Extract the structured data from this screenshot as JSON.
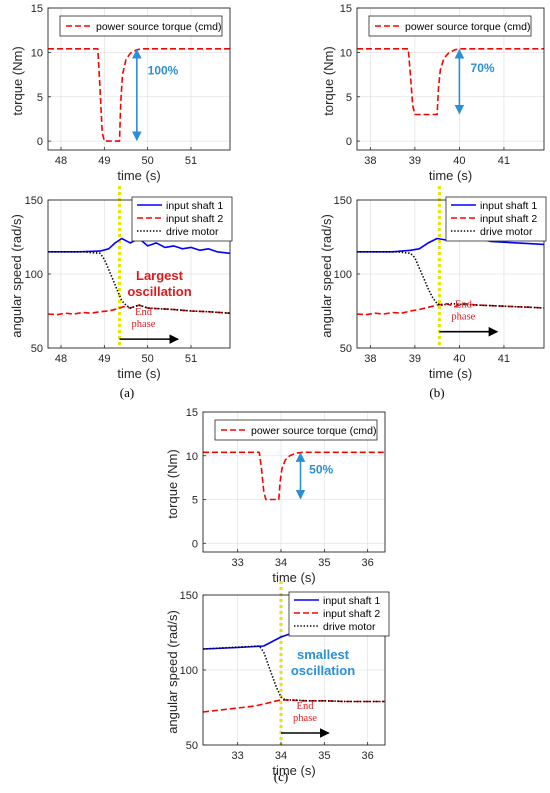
{
  "chart_data": [
    {
      "id": "a_torque",
      "type": "line",
      "xlabel": "time (s)",
      "ylabel": "torque (Nm)",
      "xlim": [
        47.7,
        51.9
      ],
      "ylim": [
        -1,
        15
      ],
      "xticks": [
        48,
        49,
        50,
        51
      ],
      "yticks": [
        0,
        5,
        10,
        15
      ],
      "grid": true,
      "legend": {
        "position": "top",
        "entries": [
          "power source torque (cmd)"
        ]
      },
      "series": [
        {
          "name": "power source torque (cmd)",
          "color": "#ff0000",
          "style": "dashed",
          "x": [
            47.7,
            48.85,
            48.9,
            48.95,
            49.0,
            49.35,
            49.38,
            49.42,
            49.5,
            49.6,
            49.75,
            49.9,
            51.9
          ],
          "y": [
            10.4,
            10.4,
            6.0,
            1.0,
            0.0,
            0.0,
            4.5,
            7.5,
            9.2,
            9.9,
            10.3,
            10.4,
            10.4
          ]
        }
      ],
      "annotations": [
        {
          "text": "100%",
          "color": "#2a8fd6",
          "arrow_x": 49.75,
          "arrow_y": [
            0,
            10.4
          ],
          "text_x": 50.0,
          "text_y": 7.5
        }
      ]
    },
    {
      "id": "a_speed",
      "type": "line",
      "xlabel": "time (s)",
      "ylabel": "angular speed (rad/s)",
      "xlim": [
        47.7,
        51.9
      ],
      "ylim": [
        50,
        150
      ],
      "xticks": [
        48,
        49,
        50,
        51
      ],
      "yticks": [
        50,
        100,
        150
      ],
      "grid": true,
      "legend": {
        "position": "top-right",
        "entries": [
          "input shaft 1",
          "input shaft 2",
          "drive motor"
        ]
      },
      "vline": {
        "x": 49.35,
        "color": "#e6e600"
      },
      "series": [
        {
          "name": "input shaft 1",
          "color": "#0000ff",
          "style": "solid",
          "x": [
            47.7,
            48.4,
            48.9,
            49.1,
            49.25,
            49.4,
            49.6,
            49.8,
            50.0,
            50.2,
            50.4,
            50.6,
            50.8,
            51.0,
            51.2,
            51.4,
            51.6,
            51.9
          ],
          "y": [
            115,
            115,
            115.5,
            117,
            121,
            124,
            121,
            124,
            119,
            121,
            118,
            119,
            117,
            118,
            116,
            117,
            115,
            114
          ]
        },
        {
          "name": "input shaft 2",
          "color": "#ff0000",
          "style": "dashed",
          "x": [
            47.7,
            47.9,
            48.1,
            48.3,
            48.5,
            48.7,
            48.9,
            49.1,
            49.3,
            49.45,
            49.6,
            49.8,
            50.0,
            50.3,
            50.6,
            51.0,
            51.4,
            51.9
          ],
          "y": [
            73,
            72.5,
            73.5,
            73,
            74,
            73.5,
            74.5,
            75,
            76.5,
            78,
            77,
            79,
            77,
            76.5,
            76,
            75,
            74.5,
            73.5
          ]
        },
        {
          "name": "drive motor",
          "color": "#000000",
          "style": "dotted",
          "x": [
            47.7,
            48.5,
            48.9,
            49.0,
            49.1,
            49.2,
            49.3,
            49.4,
            49.5,
            49.6,
            49.8,
            50.0,
            50.3,
            50.6,
            51.0,
            51.4,
            51.9
          ],
          "y": [
            115,
            115,
            114,
            110,
            103,
            96,
            89,
            82,
            79,
            77,
            79,
            77,
            76.5,
            76,
            75,
            74.5,
            73.5
          ]
        }
      ],
      "annotations": [
        {
          "text": "Largest",
          "color": "#e31a1c"
        },
        {
          "text": "oscillation",
          "color": "#e31a1c"
        },
        {
          "text": "End",
          "color": "#e31a1c"
        },
        {
          "text": "phase",
          "color": "#e31a1c"
        }
      ],
      "arrow": {
        "x": [
          49.35,
          50.7
        ],
        "y": 56,
        "color": "#000000"
      }
    },
    {
      "id": "b_torque",
      "type": "line",
      "xlabel": "time (s)",
      "ylabel": "torque (Nm)",
      "xlim": [
        37.7,
        41.9
      ],
      "ylim": [
        -1,
        15
      ],
      "xticks": [
        38,
        39,
        40,
        41
      ],
      "yticks": [
        0,
        5,
        10,
        15
      ],
      "grid": true,
      "legend": {
        "position": "top",
        "entries": [
          "power source torque (cmd)"
        ]
      },
      "series": [
        {
          "name": "power source torque (cmd)",
          "color": "#ff0000",
          "style": "dashed",
          "x": [
            37.7,
            38.85,
            38.9,
            38.95,
            39.0,
            39.5,
            39.53,
            39.57,
            39.65,
            39.75,
            39.9,
            40.05,
            41.9
          ],
          "y": [
            10.4,
            10.4,
            7.5,
            4.0,
            3.0,
            3.0,
            6.0,
            8.0,
            9.3,
            9.9,
            10.3,
            10.4,
            10.4
          ]
        }
      ],
      "annotations": [
        {
          "text": "70%",
          "color": "#2a8fd6",
          "arrow_x": 40.0,
          "arrow_y": [
            3,
            10.4
          ],
          "text_x": 40.25,
          "text_y": 7.8
        }
      ]
    },
    {
      "id": "b_speed",
      "type": "line",
      "xlabel": "time (s)",
      "ylabel": "angular speed (rad/s)",
      "xlim": [
        37.7,
        41.9
      ],
      "ylim": [
        50,
        150
      ],
      "xticks": [
        38,
        39,
        40,
        41
      ],
      "yticks": [
        50,
        100,
        150
      ],
      "grid": true,
      "legend": {
        "position": "top-right",
        "entries": [
          "input shaft 1",
          "input shaft 2",
          "drive motor"
        ]
      },
      "vline": {
        "x": 39.55,
        "color": "#e6e600"
      },
      "series": [
        {
          "name": "input shaft 1",
          "color": "#0000ff",
          "style": "solid",
          "x": [
            37.7,
            38.5,
            38.9,
            39.1,
            39.3,
            39.5,
            39.7,
            39.9,
            40.1,
            40.4,
            40.7,
            41.0,
            41.3,
            41.6,
            41.9
          ],
          "y": [
            115,
            115,
            116,
            117,
            121,
            124,
            123,
            125,
            123,
            124,
            122,
            121.5,
            121,
            120.5,
            120
          ]
        },
        {
          "name": "input shaft 2",
          "color": "#ff0000",
          "style": "dashed",
          "x": [
            37.7,
            37.9,
            38.1,
            38.3,
            38.5,
            38.7,
            38.9,
            39.1,
            39.3,
            39.5,
            39.7,
            39.9,
            40.1,
            40.4,
            40.8,
            41.2,
            41.6,
            41.9
          ],
          "y": [
            73,
            72.5,
            73.5,
            73,
            74,
            73.5,
            75,
            76,
            77.5,
            79,
            80,
            78,
            80,
            79,
            78.5,
            78,
            77.5,
            77
          ]
        },
        {
          "name": "drive motor",
          "color": "#000000",
          "style": "dotted",
          "x": [
            37.7,
            38.6,
            38.9,
            39.0,
            39.1,
            39.2,
            39.3,
            39.4,
            39.5,
            39.6,
            39.8,
            40.0,
            40.4,
            40.8,
            41.2,
            41.6,
            41.9
          ],
          "y": [
            115,
            115,
            114,
            111,
            104,
            97,
            90,
            84,
            80,
            79,
            80,
            79.5,
            79,
            78.5,
            78,
            77.5,
            77
          ]
        }
      ],
      "annotations": [
        {
          "text": "End",
          "color": "#e31a1c"
        },
        {
          "text": "phase",
          "color": "#e31a1c"
        }
      ],
      "arrow": {
        "x": [
          39.55,
          40.85
        ],
        "y": 61,
        "color": "#000000"
      }
    },
    {
      "id": "c_torque",
      "type": "line",
      "xlabel": "time (s)",
      "ylabel": "torque (Nm)",
      "xlim": [
        32.2,
        36.4
      ],
      "ylim": [
        -1,
        15
      ],
      "xticks": [
        33,
        34,
        35,
        36
      ],
      "yticks": [
        0,
        5,
        10,
        15
      ],
      "grid": true,
      "legend": {
        "position": "top",
        "entries": [
          "power source torque (cmd)"
        ]
      },
      "series": [
        {
          "name": "power source torque (cmd)",
          "color": "#ff0000",
          "style": "dashed",
          "x": [
            32.2,
            33.5,
            33.55,
            33.6,
            33.65,
            33.95,
            33.98,
            34.02,
            34.1,
            34.2,
            34.35,
            34.5,
            36.4
          ],
          "y": [
            10.4,
            10.4,
            8.5,
            6.0,
            5.0,
            5.0,
            7.0,
            8.5,
            9.5,
            10.0,
            10.3,
            10.4,
            10.4
          ]
        }
      ],
      "annotations": [
        {
          "text": "50%",
          "color": "#2a8fd6",
          "arrow_x": 34.45,
          "arrow_y": [
            5,
            10.4
          ],
          "text_x": 34.65,
          "text_y": 8.0
        }
      ]
    },
    {
      "id": "c_speed",
      "type": "line",
      "xlabel": "time (s)",
      "ylabel": "angular speed (rad/s)",
      "xlim": [
        32.2,
        36.4
      ],
      "ylim": [
        50,
        150
      ],
      "xticks": [
        33,
        34,
        35,
        36
      ],
      "yticks": [
        50,
        100,
        150
      ],
      "grid": true,
      "legend": {
        "position": "top-right",
        "entries": [
          "input shaft 1",
          "input shaft 2",
          "drive motor"
        ]
      },
      "vline": {
        "x": 34.0,
        "color": "#e6e600"
      },
      "series": [
        {
          "name": "input shaft 1",
          "color": "#0000ff",
          "style": "solid",
          "x": [
            32.2,
            33.0,
            33.6,
            33.8,
            34.0,
            34.2,
            34.5,
            34.8,
            35.1,
            35.4,
            35.7,
            36.0,
            36.4
          ],
          "y": [
            114,
            115,
            116,
            119,
            122,
            124,
            125,
            124.5,
            124.5,
            124,
            124,
            123.5,
            123
          ]
        },
        {
          "name": "input shaft 2",
          "color": "#ff0000",
          "style": "dashed",
          "x": [
            32.2,
            32.5,
            32.8,
            33.1,
            33.4,
            33.7,
            33.9,
            34.0,
            34.2,
            34.5,
            35.0,
            35.5,
            36.0,
            36.4
          ],
          "y": [
            72,
            73,
            74,
            75,
            76,
            78,
            79.5,
            80,
            80,
            79.5,
            79.5,
            79,
            79,
            79
          ]
        },
        {
          "name": "drive motor",
          "color": "#000000",
          "style": "dotted",
          "x": [
            32.2,
            33.5,
            33.6,
            33.7,
            33.8,
            33.9,
            34.0,
            34.1,
            34.3,
            34.6,
            35.0,
            35.5,
            36.0,
            36.4
          ],
          "y": [
            114,
            116,
            112,
            104,
            96,
            88,
            82,
            80,
            80,
            79.5,
            79.5,
            79,
            79,
            79
          ]
        }
      ],
      "annotations": [
        {
          "text": "smallest",
          "color": "#2a8fd6"
        },
        {
          "text": "oscillation",
          "color": "#2a8fd6"
        },
        {
          "text": "End",
          "color": "#e31a1c"
        },
        {
          "text": "phase",
          "color": "#e31a1c"
        }
      ],
      "arrow": {
        "x": [
          34.0,
          35.1
        ],
        "y": 58,
        "color": "#000000"
      }
    }
  ],
  "panel_labels": [
    "(a)",
    "(b)",
    "(c)"
  ]
}
